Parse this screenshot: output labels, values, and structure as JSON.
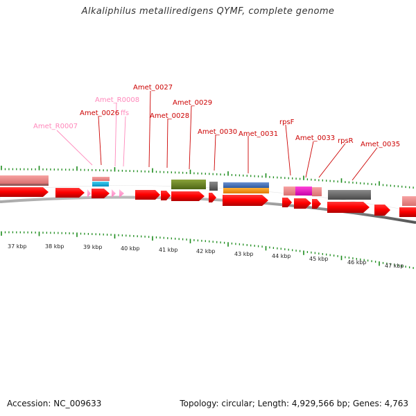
{
  "title": "Alkaliphilus metalliredigens QYMF, complete genome",
  "footer": {
    "accession": "Accession: NC_009633",
    "topology": "Topology: circular; Length: 4,929,566 bp; Genes: 4,763"
  },
  "colors": {
    "cds": "#ff0000",
    "rna": "#ff99cc",
    "backbone": "#666666",
    "tick": "#1a8a1a",
    "label_gene": "#cc0000",
    "label_rna": "#ff88bb"
  },
  "scale": {
    "labels": [
      "37 kbp",
      "38 kbp",
      "39 kbp",
      "40 kbp",
      "41 kbp",
      "42 kbp",
      "43 kbp",
      "44 kbp",
      "45 kbp",
      "46 kbp",
      "47 kbp"
    ]
  },
  "labels": [
    {
      "text": "Amet_R0007",
      "type": "rna"
    },
    {
      "text": "Amet_0026",
      "type": "gene"
    },
    {
      "text": "Amet_R0008",
      "type": "rna"
    },
    {
      "text": "ffs",
      "type": "rna"
    },
    {
      "text": "Amet_0027",
      "type": "gene"
    },
    {
      "text": "Amet_0028",
      "type": "gene"
    },
    {
      "text": "Amet_0029",
      "type": "gene"
    },
    {
      "text": "Amet_0030",
      "type": "gene"
    },
    {
      "text": "Amet_0031",
      "type": "gene"
    },
    {
      "text": "rpsF",
      "type": "gene"
    },
    {
      "text": "Amet_0033",
      "type": "gene"
    },
    {
      "text": "rpsR",
      "type": "gene"
    },
    {
      "text": "Amet_0035",
      "type": "gene"
    }
  ]
}
